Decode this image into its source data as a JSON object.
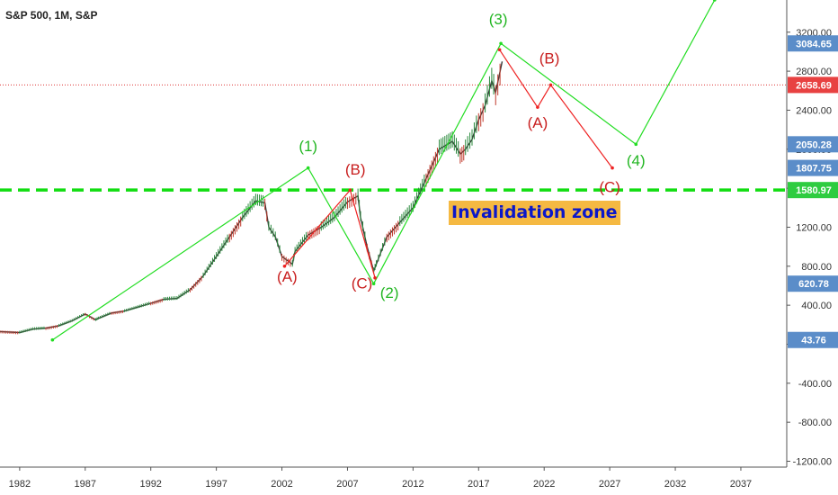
{
  "header": {
    "title": "S&P 500, 1M, S&P"
  },
  "annotation": {
    "zone_label": "Invalidation zone"
  },
  "colors": {
    "wave_green": "#22dd22",
    "wave_red": "#ee2222",
    "label_green": "#22b622",
    "label_red": "#c81e1e",
    "invalidation_line": "#11dd11",
    "price_line": "#dd3333",
    "badge": "#5b8dc9",
    "badge_current": "#e84141",
    "badge_invalidation": "#2ecc40",
    "zone_bg": "#f5b942",
    "zone_text": "#0b17c9"
  },
  "chart_data": {
    "type": "line",
    "title": "S&P 500, 1M, S&P",
    "xlabel": "",
    "ylabel": "",
    "xlim": [
      1980.5,
      2040.5
    ],
    "ylim": [
      -1260,
      3530
    ],
    "grid": false,
    "x_ticks": [
      "1982",
      "1987",
      "1992",
      "1997",
      "2002",
      "2007",
      "2012",
      "2017",
      "2022",
      "2027",
      "2032",
      "2037"
    ],
    "y_ticks": [
      "3200.00",
      "2800.00",
      "2400.00",
      "2000.00",
      "1600.00",
      "1200.00",
      "800.00",
      "400.00",
      "0.00",
      "-400.00",
      "-800.00",
      "-1200.00"
    ],
    "price_badges": [
      {
        "label": "3084.65",
        "value": 3084.65,
        "kind": "level"
      },
      {
        "label": "2658.69",
        "value": 2658.69,
        "kind": "current"
      },
      {
        "label": "2050.28",
        "value": 2050.28,
        "kind": "level"
      },
      {
        "label": "1807.75",
        "value": 1807.75,
        "kind": "level"
      },
      {
        "label": "1580.97",
        "value": 1580.97,
        "kind": "invalidation"
      },
      {
        "label": "620.78",
        "value": 620.78,
        "kind": "level"
      },
      {
        "label": "43.76",
        "value": 43.76,
        "kind": "level"
      }
    ],
    "current_price": 2658.69,
    "invalidation_level": 1580.97,
    "price_series": {
      "name": "S&P 500",
      "x": [
        1980.5,
        1982,
        1983,
        1984,
        1985,
        1986,
        1987,
        1987.8,
        1988,
        1989,
        1990,
        1991,
        1992,
        1993,
        1994,
        1995,
        1996,
        1997,
        1998,
        1999,
        2000,
        2000.7,
        2001,
        2001.5,
        2002,
        2002.8,
        2003,
        2004,
        2005,
        2006,
        2007,
        2007.8,
        2008,
        2008.5,
        2009,
        2009.2,
        2010,
        2011,
        2012,
        2013,
        2014,
        2015,
        2015.6,
        2016,
        2016.5,
        2017,
        2017.5,
        2018,
        2018.3,
        2018.8
      ],
      "y": [
        130,
        120,
        155,
        165,
        190,
        240,
        310,
        250,
        265,
        320,
        340,
        380,
        420,
        460,
        470,
        560,
        700,
        900,
        1100,
        1300,
        1470,
        1450,
        1200,
        1100,
        900,
        820,
        950,
        1120,
        1200,
        1300,
        1460,
        1520,
        1300,
        1000,
        750,
        820,
        1100,
        1250,
        1400,
        1700,
        2000,
        2080,
        1950,
        2000,
        2100,
        2300,
        2450,
        2700,
        2580,
        2900
      ]
    },
    "series": [
      {
        "name": "",
        "color": "green",
        "x": [
          1984.5,
          2004,
          2009,
          2018.7,
          2029,
          2035
        ],
        "y": [
          43.76,
          1807.75,
          620.78,
          3084.65,
          2050.28,
          3530
        ]
      },
      {
        "name": "",
        "color": "red",
        "x": [
          2002.2,
          2007.2,
          2009.1
        ],
        "y": [
          800,
          1580.97,
          680
        ]
      },
      {
        "name": "",
        "color": "red",
        "x": [
          2018.6,
          2021.5,
          2022.5,
          2027.2
        ],
        "y": [
          3020,
          2430,
          2658.69,
          1807.75
        ]
      }
    ],
    "annotations": [
      {
        "text": "(1)",
        "x": 2004,
        "y": 1980,
        "color": "green"
      },
      {
        "text": "(2)",
        "x": 2010.2,
        "y": 475,
        "color": "green"
      },
      {
        "text": "(3)",
        "x": 2018.5,
        "y": 3280,
        "color": "green"
      },
      {
        "text": "(4)",
        "x": 2029,
        "y": 1830,
        "color": "green"
      },
      {
        "text": "(A)",
        "x": 2002.4,
        "y": 640,
        "color": "red"
      },
      {
        "text": "(B)",
        "x": 2007.6,
        "y": 1740,
        "color": "red"
      },
      {
        "text": "(C)",
        "x": 2008.1,
        "y": 570,
        "color": "red"
      },
      {
        "text": "(A)",
        "x": 2021.5,
        "y": 2220,
        "color": "red"
      },
      {
        "text": "(B)",
        "x": 2022.4,
        "y": 2880,
        "color": "red"
      },
      {
        "text": "(C)",
        "x": 2027,
        "y": 1560,
        "color": "red"
      }
    ]
  }
}
